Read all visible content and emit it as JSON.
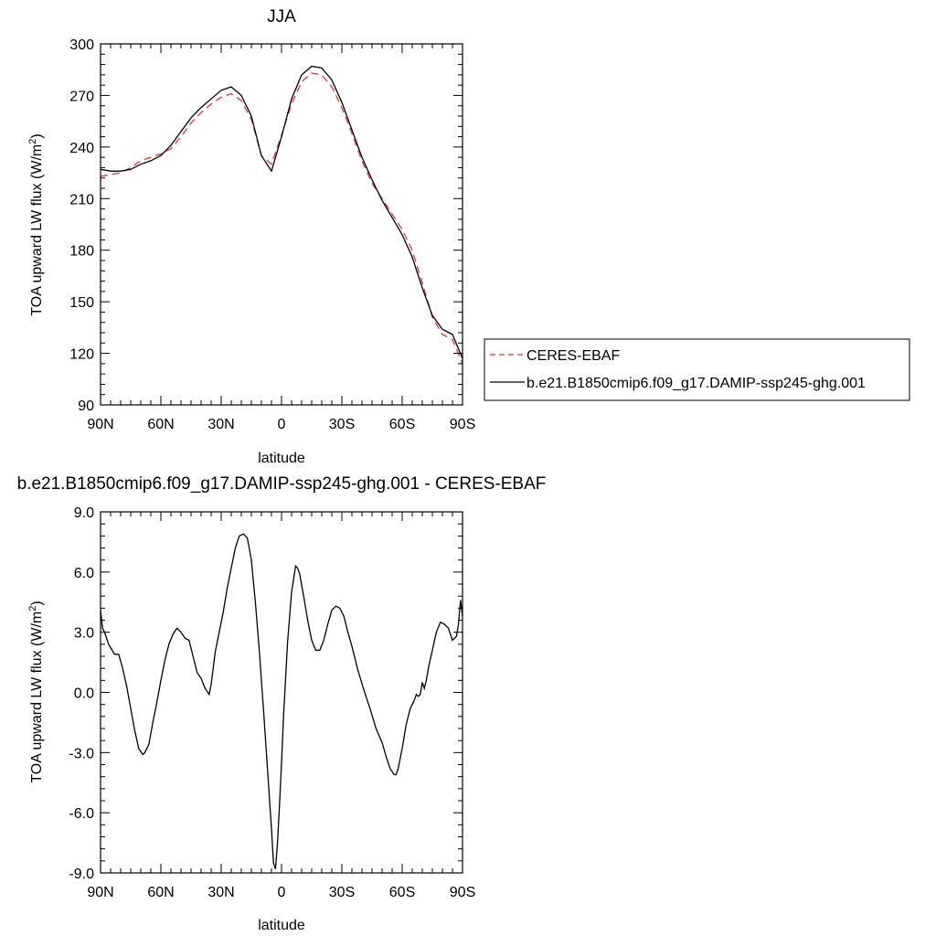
{
  "chart_data": [
    {
      "type": "line",
      "title": "JJA",
      "xlabel": "latitude",
      "ylabel": "TOA upward LW flux (W/m",
      "ylabel_sup": "2",
      "ylabel_close": ")",
      "xlim": [
        90,
        -90
      ],
      "ylim": [
        90,
        300
      ],
      "xticks": [
        {
          "value": 90,
          "label": "90N"
        },
        {
          "value": 60,
          "label": "60N"
        },
        {
          "value": 30,
          "label": "30N"
        },
        {
          "value": 0,
          "label": "0"
        },
        {
          "value": -30,
          "label": "30S"
        },
        {
          "value": -60,
          "label": "60S"
        },
        {
          "value": -90,
          "label": "90S"
        }
      ],
      "yticks": [
        {
          "value": 90,
          "label": "90"
        },
        {
          "value": 120,
          "label": "120"
        },
        {
          "value": 150,
          "label": "150"
        },
        {
          "value": 180,
          "label": "180"
        },
        {
          "value": 210,
          "label": "210"
        },
        {
          "value": 240,
          "label": "240"
        },
        {
          "value": 270,
          "label": "270"
        },
        {
          "value": 300,
          "label": "300"
        }
      ],
      "legend_position": "right",
      "series": [
        {
          "name": "CERES-EBAF",
          "color": "#e8332f",
          "dash": "dashed",
          "x": [
            90,
            85,
            80,
            75,
            70,
            65,
            60,
            55,
            50,
            45,
            40,
            35,
            30,
            25,
            20,
            15,
            10,
            5,
            0,
            -5,
            -10,
            -15,
            -20,
            -25,
            -30,
            -35,
            -40,
            -45,
            -50,
            -55,
            -60,
            -65,
            -70,
            -75,
            -80,
            -85,
            -90
          ],
          "y": [
            223,
            224,
            225,
            228,
            232,
            234,
            236,
            239,
            246,
            254,
            260,
            265,
            269,
            271,
            267,
            256,
            235,
            230,
            247,
            265,
            278,
            283,
            282,
            275,
            263,
            248,
            232,
            219,
            210,
            201,
            192,
            180,
            161,
            141,
            131,
            128,
            114
          ]
        },
        {
          "name": "b.e21.B1850cmip6.f09_g17.DAMIP-ssp245-ghg.001",
          "color": "#000000",
          "dash": "solid",
          "x": [
            90,
            85,
            80,
            75,
            70,
            65,
            60,
            55,
            50,
            45,
            40,
            35,
            30,
            25,
            20,
            15,
            10,
            5,
            0,
            -5,
            -10,
            -15,
            -20,
            -25,
            -30,
            -35,
            -40,
            -45,
            -50,
            -55,
            -60,
            -65,
            -70,
            -75,
            -80,
            -85,
            -90
          ],
          "y": [
            227,
            226,
            226,
            227,
            230,
            232,
            235,
            241,
            249,
            257,
            263,
            268,
            273,
            275,
            270,
            258,
            235,
            226,
            246,
            268,
            282,
            287,
            286,
            279,
            266,
            250,
            234,
            221,
            209,
            199,
            189,
            176,
            158,
            142,
            134,
            131,
            117
          ]
        }
      ]
    },
    {
      "type": "line",
      "title": "b.e21.B1850cmip6.f09_g17.DAMIP-ssp245-ghg.001 - CERES-EBAF",
      "xlabel": "latitude",
      "ylabel": "TOA upward LW flux (W/m",
      "ylabel_sup": "2",
      "ylabel_close": ")",
      "xlim": [
        90,
        -90
      ],
      "ylim": [
        -9,
        9
      ],
      "xticks": [
        {
          "value": 90,
          "label": "90N"
        },
        {
          "value": 60,
          "label": "60N"
        },
        {
          "value": 30,
          "label": "30N"
        },
        {
          "value": 0,
          "label": "0"
        },
        {
          "value": -30,
          "label": "30S"
        },
        {
          "value": -60,
          "label": "60S"
        },
        {
          "value": -90,
          "label": "90S"
        }
      ],
      "yticks": [
        {
          "value": -9,
          "label": "-9.0"
        },
        {
          "value": -6,
          "label": "-6.0"
        },
        {
          "value": -3,
          "label": "-3.0"
        },
        {
          "value": 0,
          "label": "0.0"
        },
        {
          "value": 3,
          "label": "3.0"
        },
        {
          "value": 6,
          "label": "6.0"
        },
        {
          "value": 9,
          "label": "9.0"
        }
      ],
      "series": [
        {
          "color": "#000000",
          "dash": "solid",
          "x": [
            90,
            89,
            88,
            86,
            83,
            81,
            79,
            77,
            75,
            73,
            71,
            69,
            68,
            66,
            64,
            62,
            60,
            58,
            56,
            54,
            52,
            50,
            48,
            46,
            44,
            42,
            40,
            38,
            36,
            35,
            34,
            33,
            31,
            29,
            27,
            25,
            23,
            21,
            19,
            17,
            15,
            13,
            11,
            9,
            7,
            5,
            4,
            3,
            2,
            1,
            0,
            -1,
            -3,
            -5,
            -7,
            -8,
            -9,
            -11,
            -13,
            -15,
            -17,
            -19,
            -21,
            -23,
            -25,
            -27,
            -29,
            -31,
            -33,
            -35,
            -38,
            -41,
            -44,
            -47,
            -50,
            -52,
            -54,
            -56,
            -57,
            -58,
            -60,
            -62,
            -64,
            -66,
            -67,
            -68,
            -69,
            -70,
            -71,
            -72,
            -73,
            -75,
            -77,
            -79,
            -81,
            -83,
            -85,
            -87,
            -88,
            -89,
            -90
          ],
          "y": [
            4.1,
            3.2,
            3.0,
            2.4,
            1.9,
            1.9,
            1.2,
            0.3,
            -0.8,
            -1.9,
            -2.8,
            -3.1,
            -3.0,
            -2.6,
            -1.5,
            -0.5,
            0.6,
            1.6,
            2.4,
            2.9,
            3.2,
            3.0,
            2.7,
            2.6,
            1.8,
            1.0,
            0.7,
            0.2,
            -0.1,
            0.4,
            1.2,
            2.0,
            3.0,
            4.0,
            5.2,
            6.2,
            7.2,
            7.8,
            7.9,
            7.7,
            6.6,
            4.5,
            2.0,
            -0.8,
            -3.8,
            -6.8,
            -8.5,
            -8.8,
            -7.5,
            -5.6,
            -3.5,
            -1.2,
            2.5,
            5.0,
            6.3,
            6.2,
            5.9,
            4.8,
            3.6,
            2.6,
            2.1,
            2.1,
            2.6,
            3.4,
            4.1,
            4.3,
            4.2,
            3.8,
            3.0,
            2.3,
            1.1,
            0.1,
            -0.8,
            -1.8,
            -2.5,
            -3.2,
            -3.8,
            -4.1,
            -4.1,
            -3.8,
            -2.8,
            -1.6,
            -0.8,
            -0.4,
            -0.1,
            -0.2,
            -0.1,
            0.5,
            0.2,
            0.6,
            1.2,
            2.1,
            3.0,
            3.5,
            3.4,
            3.2,
            2.6,
            2.8,
            3.4,
            4.6,
            3.8
          ]
        }
      ]
    }
  ]
}
